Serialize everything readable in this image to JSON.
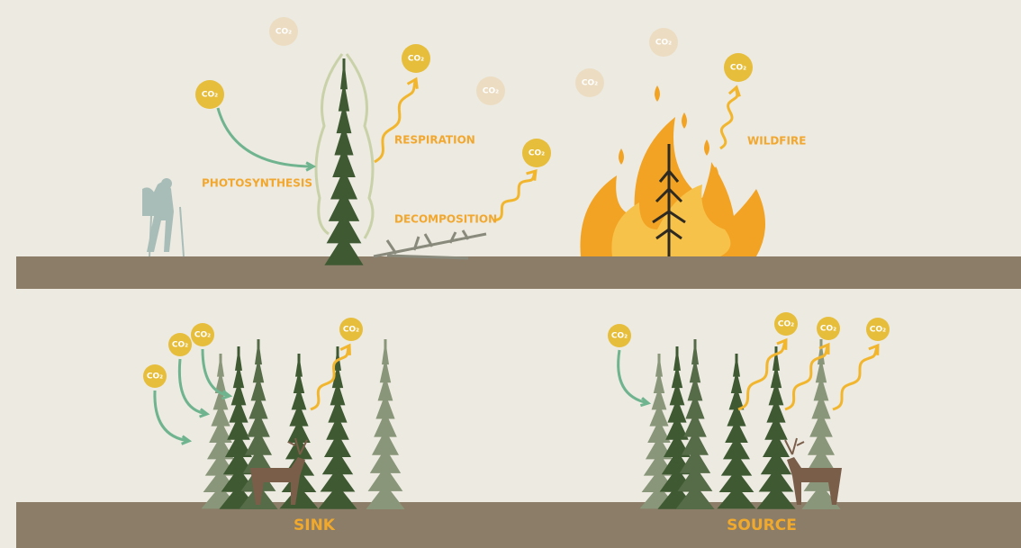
{
  "top_panel": {
    "labels": {
      "photosynthesis": "PHOTOSYNTHESIS",
      "respiration": "RESPIRATION",
      "decomposition": "DECOMPOSITION",
      "wildfire": "WILDFIRE"
    },
    "bubbles": [
      "CO₂",
      "CO₂",
      "CO₂",
      "CO₂",
      "CO₂",
      "CO₂",
      "CO₂",
      "CO₂"
    ]
  },
  "bottom_panel": {
    "sink": {
      "label": "SINK",
      "bubbles": [
        "CO₂",
        "CO₂",
        "CO₂",
        "CO₂"
      ]
    },
    "source": {
      "label": "SOURCE",
      "bubbles": [
        "CO₂",
        "CO₂",
        "CO₂",
        "CO₂"
      ]
    }
  }
}
